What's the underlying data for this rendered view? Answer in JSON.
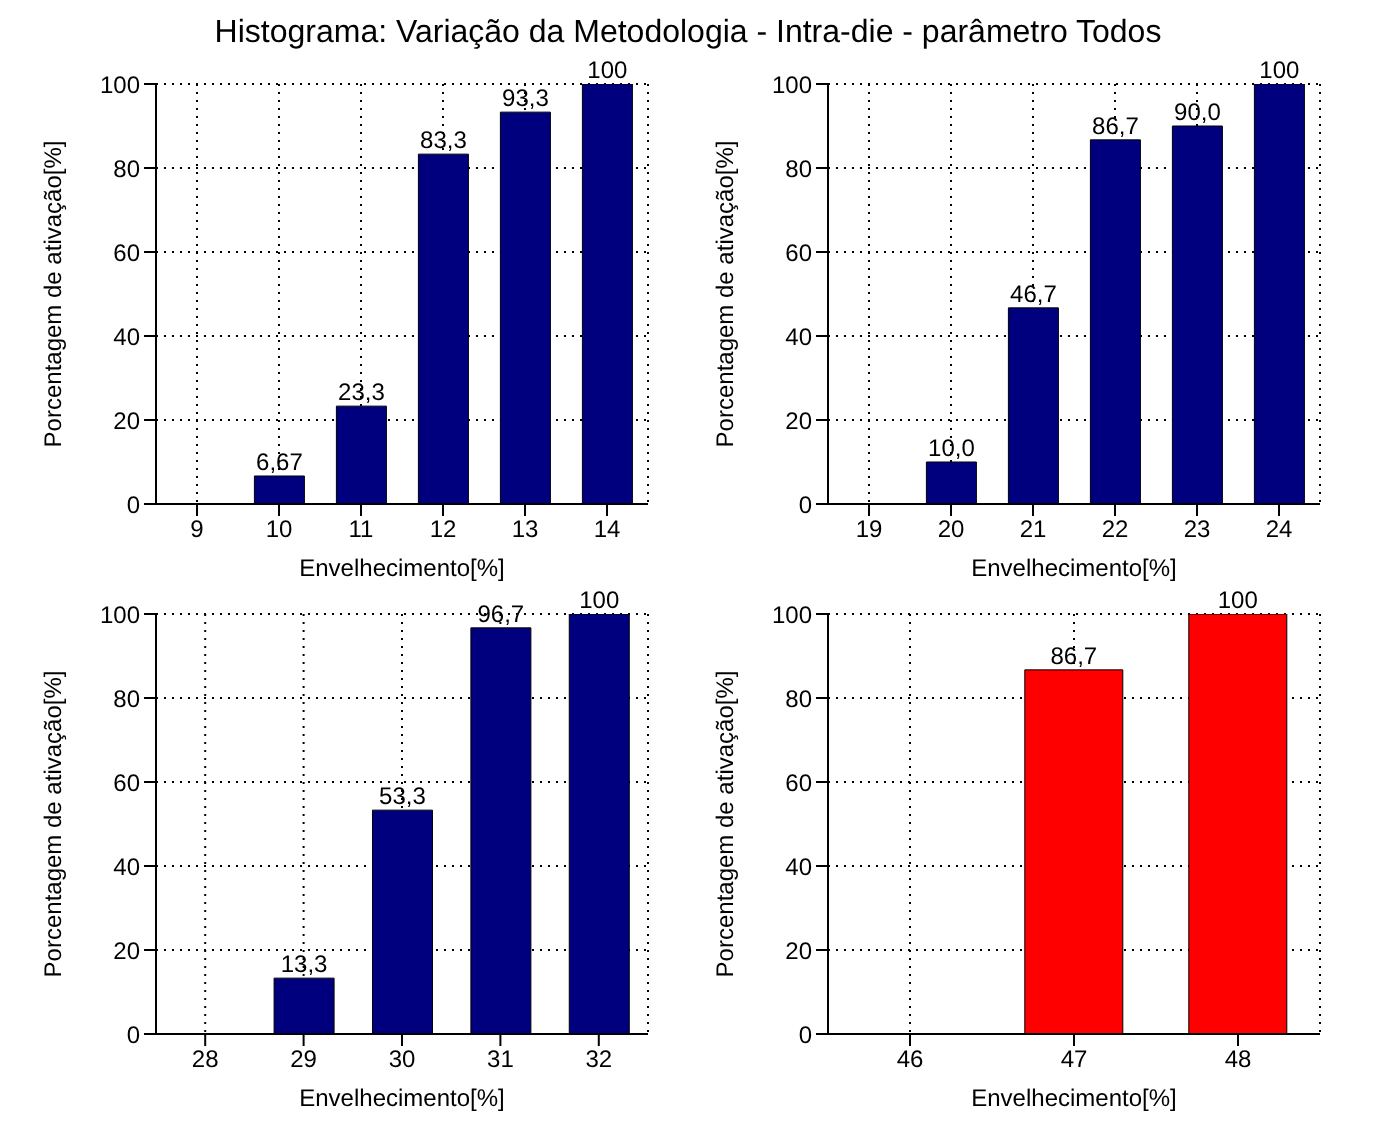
{
  "chart_data": [
    {
      "type": "bar",
      "title": "Histograma: Variação da Metodologia - Intra-die - parâmetro Todos",
      "xlabel": "Envelhecimento[%]",
      "ylabel": "Porcentagem de ativação[%]",
      "categories": [
        "9",
        "10",
        "11",
        "12",
        "13",
        "14"
      ],
      "values": [
        0,
        6.67,
        23.3,
        83.3,
        93.3,
        100
      ],
      "value_labels": [
        null,
        "6,67",
        "23,3",
        "83,3",
        "93,3",
        "100"
      ],
      "color": "#00007f",
      "ylim": [
        0,
        100
      ],
      "yticks": [
        0,
        20,
        40,
        60,
        80,
        100
      ],
      "grid": true
    },
    {
      "type": "bar",
      "xlabel": "Envelhecimento[%]",
      "ylabel": "Porcentagem de ativação[%]",
      "categories": [
        "19",
        "20",
        "21",
        "22",
        "23",
        "24"
      ],
      "values": [
        0,
        10.0,
        46.7,
        86.7,
        90.0,
        100
      ],
      "value_labels": [
        null,
        "10,0",
        "46,7",
        "86,7",
        "90,0",
        "100"
      ],
      "color": "#00007f",
      "ylim": [
        0,
        100
      ],
      "yticks": [
        0,
        20,
        40,
        60,
        80,
        100
      ],
      "grid": true
    },
    {
      "type": "bar",
      "xlabel": "Envelhecimento[%]",
      "ylabel": "Porcentagem de ativação[%]",
      "categories": [
        "28",
        "29",
        "30",
        "31",
        "32"
      ],
      "values": [
        0,
        13.3,
        53.3,
        96.7,
        100
      ],
      "value_labels": [
        null,
        "13,3",
        "53,3",
        "96,7",
        "100"
      ],
      "color": "#00007f",
      "ylim": [
        0,
        100
      ],
      "yticks": [
        0,
        20,
        40,
        60,
        80,
        100
      ],
      "grid": true
    },
    {
      "type": "bar",
      "xlabel": "Envelhecimento[%]",
      "ylabel": "Porcentagem de ativação[%]",
      "categories": [
        "46",
        "47",
        "48"
      ],
      "values": [
        0,
        86.7,
        100
      ],
      "value_labels": [
        null,
        "86,7",
        "100"
      ],
      "color": "#ff0000",
      "ylim": [
        0,
        100
      ],
      "yticks": [
        0,
        20,
        40,
        60,
        80,
        100
      ],
      "grid": true
    }
  ]
}
